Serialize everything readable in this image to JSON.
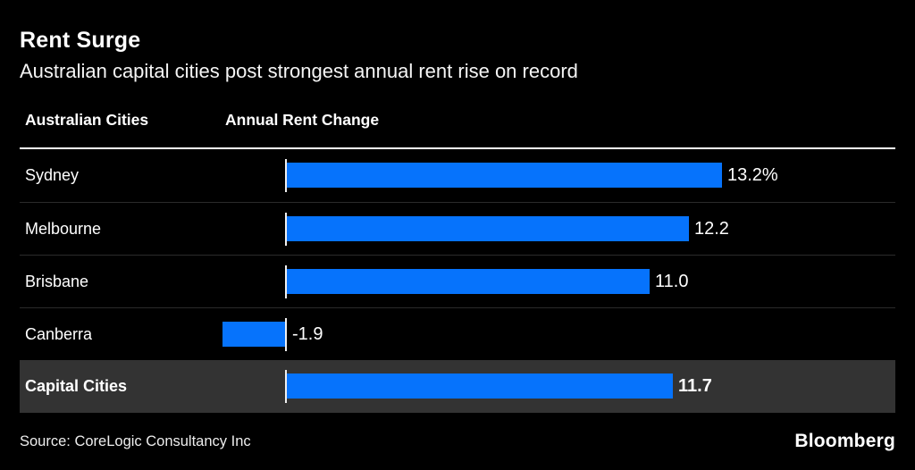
{
  "header": {
    "title": "Rent Surge",
    "subtitle": "Australian capital cities post strongest annual rent rise on record"
  },
  "table": {
    "col1": "Australian Cities",
    "col2": "Annual Rent Change"
  },
  "chart_data": {
    "type": "bar",
    "orientation": "horizontal",
    "title": "Rent Surge",
    "subtitle": "Australian capital cities post strongest annual rent rise on record",
    "column_headers": [
      "Australian Cities",
      "Annual Rent Change"
    ],
    "categories": [
      "Sydney",
      "Melbourne",
      "Brisbane",
      "Canberra",
      "Capital Cities"
    ],
    "values": [
      13.2,
      12.2,
      11.0,
      -1.9,
      11.7
    ],
    "value_labels": [
      "13.2%",
      "12.2",
      "11.0",
      "-1.9",
      "11.7"
    ],
    "highlighted_category": "Capital Cities",
    "unit": "percent",
    "xlim": [
      -1.9,
      13.2
    ],
    "grid": false,
    "legend": false
  },
  "colors": {
    "background": "#000000",
    "bar": "#0673fc",
    "highlight_row_bg": "#333333",
    "divider": "#2b2b2b",
    "baseline_tick": "#f0f0f0",
    "text": "#ffffff"
  },
  "footer": {
    "source": "Source: CoreLogic Consultancy Inc",
    "brand": "Bloomberg"
  }
}
